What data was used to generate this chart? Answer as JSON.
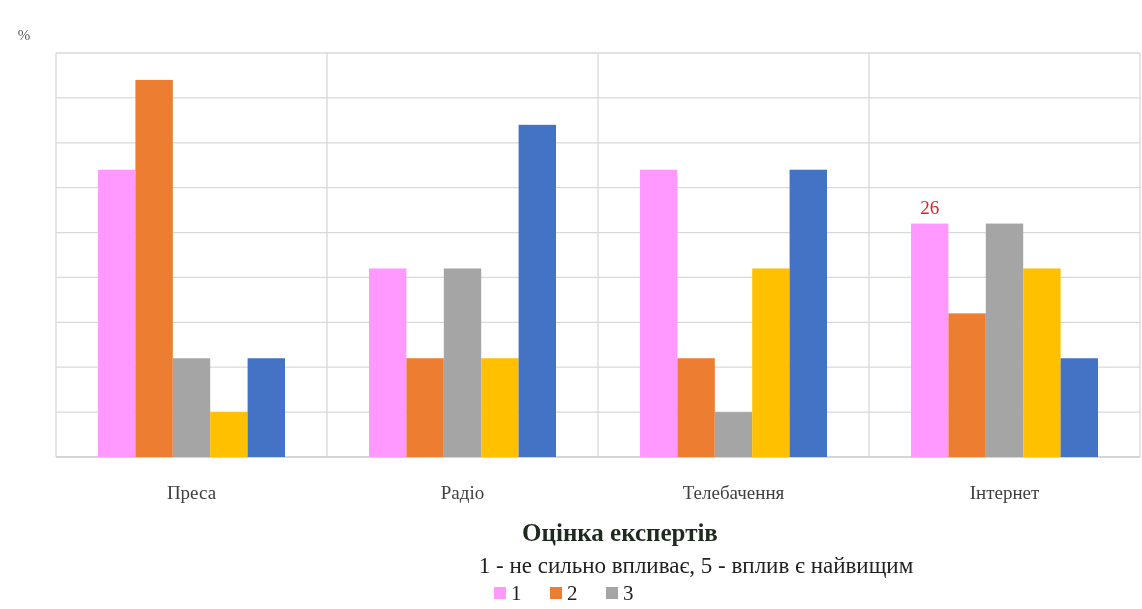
{
  "chart_data": {
    "type": "bar",
    "ylabel": "%",
    "xlabel": "Оцінка експертів",
    "legend_title": "1 - не сильно впливає, 5 - вплив є найвищим",
    "categories": [
      "Преса",
      "Радіо",
      "Телебачення",
      "Інтернет"
    ],
    "series": [
      {
        "name": "1",
        "color": "#ff99ff",
        "values": [
          32,
          21,
          32,
          26
        ],
        "value_labels": [
          null,
          null,
          null,
          "26"
        ]
      },
      {
        "name": "2",
        "color": "#ed7d31",
        "values": [
          42,
          11,
          11,
          16
        ]
      },
      {
        "name": "3",
        "color": "#a5a5a5",
        "values": [
          11,
          21,
          5,
          26
        ]
      },
      {
        "color": "#ffc000",
        "values": [
          5,
          11,
          21,
          21
        ]
      },
      {
        "color": "#4472c4",
        "values": [
          11,
          37,
          32,
          11
        ]
      }
    ],
    "ylim": [
      0,
      45
    ],
    "yticks": [
      {
        "value": 0,
        "label": null
      },
      {
        "value": 5,
        "label": null
      },
      {
        "value": 10,
        "label": null
      },
      {
        "value": 15,
        "label": null
      },
      {
        "value": 20,
        "label": null
      },
      {
        "value": 25,
        "label": null
      },
      {
        "value": 30,
        "label": null
      },
      {
        "value": 35,
        "label": null
      },
      {
        "value": 40,
        "label": null
      },
      {
        "value": 45,
        "label": null
      }
    ],
    "grid": true,
    "legend": "bottom",
    "tick_labels": "x"
  }
}
